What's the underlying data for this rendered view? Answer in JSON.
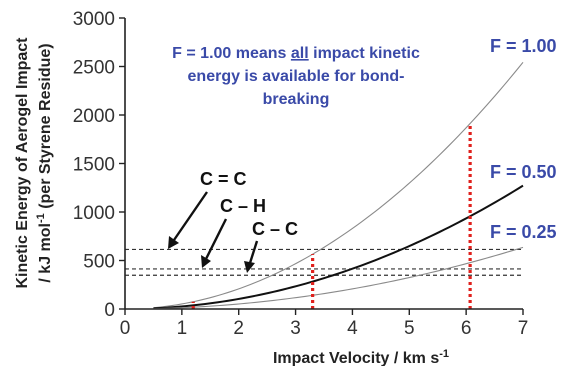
{
  "chart_data": {
    "type": "line",
    "xlabel": "Impact Velocity / km s",
    "xlabel_superscript": "-1",
    "ylabel_line1": "Kinetic Energy of Aerogel Impact",
    "ylabel_line2_pre": "/ kJ mol",
    "ylabel_line2_sup": "-1",
    "ylabel_line2_post": " (per Styrene Residue)",
    "xlim": [
      0,
      7
    ],
    "ylim": [
      0,
      3000
    ],
    "x_ticks": [
      0,
      1,
      2,
      3,
      4,
      5,
      6,
      7
    ],
    "y_ticks": [
      0,
      500,
      1000,
      1500,
      2000,
      2500,
      3000
    ],
    "curve_x_start": 0.5,
    "series": [
      {
        "name": "F = 1.00",
        "coefficient": 51.9,
        "color": "#8a8a8a",
        "width": 1.1
      },
      {
        "name": "F = 0.50",
        "coefficient": 25.95,
        "color": "#111111",
        "width": 2.0
      },
      {
        "name": "F = 0.25",
        "coefficient": 12.97,
        "color": "#8a8a8a",
        "width": 1.1
      }
    ],
    "bond_thresholds": [
      {
        "name": "C = C",
        "energy": 614,
        "velocity": 1.2
      },
      {
        "name": "C – H",
        "energy": 413,
        "velocity": 3.3
      },
      {
        "name": "C – C",
        "energy": 348,
        "velocity": 6.07
      }
    ],
    "annotation_lines": [
      "F = 1.00 means all impact kinetic",
      "energy is available for bond-",
      "breaking"
    ],
    "annotation_colors": {
      "text": "#3a4aa8",
      "threshold_dashes": "#333333",
      "velocity_markers": "#e0201c"
    }
  }
}
